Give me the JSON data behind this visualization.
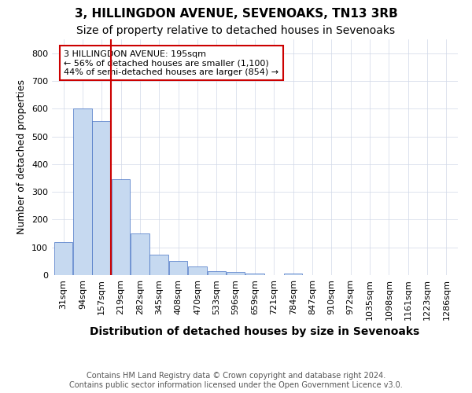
{
  "title": "3, HILLINGDON AVENUE, SEVENOAKS, TN13 3RB",
  "subtitle": "Size of property relative to detached houses in Sevenoaks",
  "xlabel": "Distribution of detached houses by size in Sevenoaks",
  "ylabel": "Number of detached properties",
  "bin_labels": [
    "31sqm",
    "94sqm",
    "157sqm",
    "219sqm",
    "282sqm",
    "345sqm",
    "408sqm",
    "470sqm",
    "533sqm",
    "596sqm",
    "659sqm",
    "721sqm",
    "784sqm",
    "847sqm",
    "910sqm",
    "972sqm",
    "1035sqm",
    "1098sqm",
    "1161sqm",
    "1223sqm",
    "1286sqm"
  ],
  "bar_heights": [
    120,
    600,
    555,
    345,
    150,
    73,
    52,
    30,
    15,
    10,
    5,
    0,
    5,
    0,
    0,
    0,
    0,
    0,
    0,
    0,
    0
  ],
  "bar_color": "#c6d9f0",
  "bar_edge_color": "#4472c4",
  "vline_x": 2.5,
  "annotation_text": "3 HILLINGDON AVENUE: 195sqm\n← 56% of detached houses are smaller (1,100)\n44% of semi-detached houses are larger (854) →",
  "vline_color": "#cc0000",
  "annotation_box_color": "#cc0000",
  "ylim_max": 850,
  "yticks": [
    0,
    100,
    200,
    300,
    400,
    500,
    600,
    700,
    800
  ],
  "footer_line1": "Contains HM Land Registry data © Crown copyright and database right 2024.",
  "footer_line2": "Contains public sector information licensed under the Open Government Licence v3.0.",
  "background_color": "#ffffff",
  "grid_color": "#d0d8e8",
  "title_fontsize": 11,
  "subtitle_fontsize": 10,
  "xlabel_fontsize": 10,
  "ylabel_fontsize": 9,
  "tick_fontsize": 8,
  "annotation_fontsize": 8,
  "footer_fontsize": 7
}
